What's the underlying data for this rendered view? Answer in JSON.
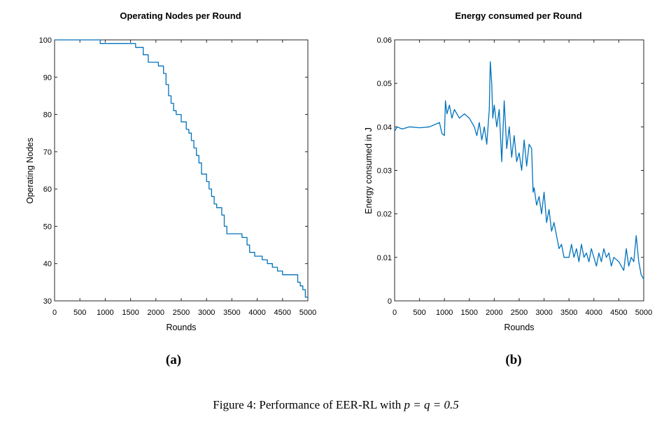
{
  "colors": {
    "series": "#0072BD",
    "axis": "#262626",
    "background": "#ffffff"
  },
  "chart_data": [
    {
      "type": "line",
      "panel_label": "(a)",
      "title": "Operating Nodes per Round",
      "xlabel": "Rounds",
      "ylabel": "Operating Nodes",
      "xlim": [
        0,
        5000
      ],
      "ylim": [
        30,
        100
      ],
      "xticks": [
        0,
        500,
        1000,
        1500,
        2000,
        2500,
        3000,
        3500,
        4000,
        4500,
        5000
      ],
      "yticks": [
        30,
        40,
        50,
        60,
        70,
        80,
        90,
        100
      ],
      "grid": false,
      "series": [
        {
          "step": true,
          "x": [
            0,
            900,
            1200,
            1600,
            1750,
            1850,
            2050,
            2150,
            2200,
            2250,
            2300,
            2350,
            2400,
            2500,
            2600,
            2650,
            2700,
            2750,
            2800,
            2850,
            2900,
            3000,
            3050,
            3100,
            3150,
            3200,
            3300,
            3350,
            3400,
            3500,
            3700,
            3800,
            3850,
            3950,
            4100,
            4200,
            4300,
            4400,
            4500,
            4600,
            4800,
            4850,
            4900,
            4950
          ],
          "y": [
            100,
            99,
            99,
            98,
            96,
            94,
            93,
            91,
            88,
            85,
            83,
            81,
            80,
            78,
            76,
            75,
            73,
            71,
            69,
            67,
            64,
            62,
            60,
            58,
            56,
            55,
            53,
            50,
            48,
            48,
            47,
            45,
            43,
            42,
            41,
            40,
            39,
            38,
            37,
            37,
            35,
            34,
            33,
            31
          ]
        }
      ]
    },
    {
      "type": "line",
      "panel_label": "(b)",
      "title": "Energy consumed per Round",
      "xlabel": "Rounds",
      "ylabel": "Energy consumed in J",
      "xlim": [
        0,
        5000
      ],
      "ylim": [
        0,
        0.06
      ],
      "xticks": [
        0,
        500,
        1000,
        1500,
        2000,
        2500,
        3000,
        3500,
        4000,
        4500,
        5000
      ],
      "yticks": [
        0,
        0.01,
        0.02,
        0.03,
        0.04,
        0.05,
        0.06
      ],
      "ytick_labels": [
        "0",
        "0.01",
        "0.02",
        "0.03",
        "0.04",
        "0.05",
        "0.06"
      ],
      "grid": false,
      "series": [
        {
          "x": [
            0,
            50,
            150,
            300,
            500,
            700,
            900,
            950,
            1000,
            1020,
            1050,
            1100,
            1150,
            1200,
            1300,
            1400,
            1500,
            1600,
            1650,
            1700,
            1750,
            1800,
            1850,
            1900,
            1920,
            1950,
            1970,
            2000,
            2050,
            2100,
            2150,
            2200,
            2250,
            2300,
            2350,
            2400,
            2450,
            2500,
            2550,
            2600,
            2650,
            2700,
            2750,
            2780,
            2800,
            2850,
            2900,
            2950,
            3000,
            3050,
            3100,
            3150,
            3200,
            3250,
            3300,
            3350,
            3400,
            3500,
            3550,
            3600,
            3650,
            3700,
            3750,
            3800,
            3850,
            3900,
            3950,
            4000,
            4050,
            4100,
            4150,
            4200,
            4250,
            4300,
            4350,
            4400,
            4500,
            4600,
            4650,
            4700,
            4750,
            4800,
            4850,
            4900,
            4950,
            5000
          ],
          "y": [
            0.039,
            0.04,
            0.0395,
            0.04,
            0.0398,
            0.04,
            0.041,
            0.0385,
            0.038,
            0.046,
            0.043,
            0.045,
            0.042,
            0.044,
            0.042,
            0.043,
            0.042,
            0.04,
            0.038,
            0.041,
            0.037,
            0.04,
            0.036,
            0.044,
            0.055,
            0.05,
            0.042,
            0.045,
            0.04,
            0.044,
            0.032,
            0.046,
            0.035,
            0.04,
            0.033,
            0.038,
            0.032,
            0.034,
            0.03,
            0.037,
            0.031,
            0.036,
            0.035,
            0.025,
            0.026,
            0.022,
            0.024,
            0.02,
            0.025,
            0.018,
            0.021,
            0.016,
            0.018,
            0.015,
            0.012,
            0.013,
            0.01,
            0.01,
            0.013,
            0.01,
            0.012,
            0.009,
            0.013,
            0.01,
            0.011,
            0.009,
            0.012,
            0.01,
            0.008,
            0.011,
            0.009,
            0.012,
            0.01,
            0.011,
            0.008,
            0.01,
            0.009,
            0.007,
            0.012,
            0.008,
            0.01,
            0.009,
            0.015,
            0.009,
            0.006,
            0.005
          ]
        }
      ]
    }
  ],
  "caption": {
    "prefix": "Figure 4: Performance of EER-RL with ",
    "p": "p",
    "eq1": " = ",
    "q": "q",
    "eq2": " = ",
    "value": "0.5"
  }
}
